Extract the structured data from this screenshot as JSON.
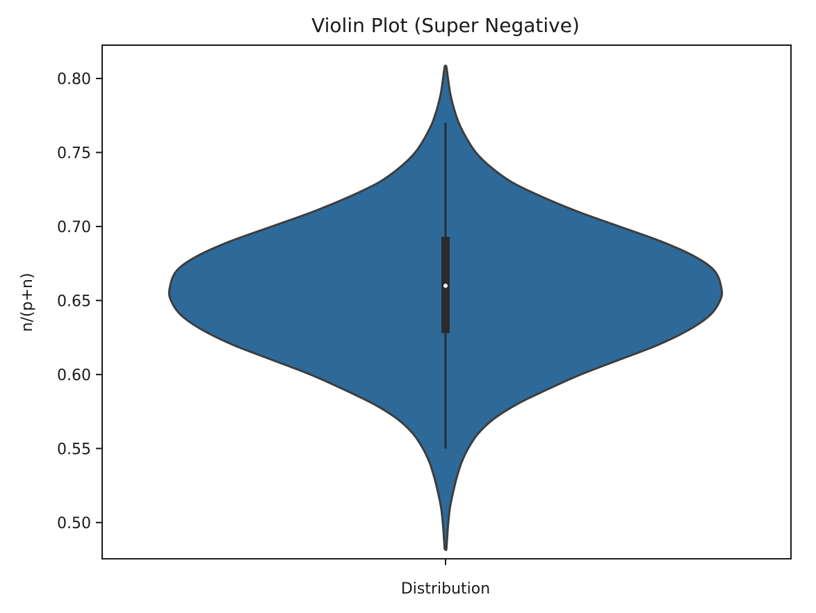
{
  "chart_data": {
    "type": "violin",
    "title": "Violin Plot (Super Negative)",
    "xlabel": "Distribution",
    "ylabel": "n/(p+n)",
    "categories": [
      "Distribution"
    ],
    "ylim": [
      0.4755,
      0.8225
    ],
    "yticks": [
      0.5,
      0.55,
      0.6,
      0.65,
      0.7,
      0.75,
      0.8
    ],
    "ytick_labels": [
      "0.50",
      "0.55",
      "0.60",
      "0.65",
      "0.70",
      "0.75",
      "0.80"
    ],
    "grid": false,
    "fill_color": "#2d6a9a",
    "edge_color": "#3d3d3d",
    "density_extent": [
      0.482,
      0.808
    ],
    "density_profile": [
      {
        "y": 0.482,
        "w": 0.003
      },
      {
        "y": 0.49,
        "w": 0.006
      },
      {
        "y": 0.5,
        "w": 0.01
      },
      {
        "y": 0.51,
        "w": 0.016
      },
      {
        "y": 0.52,
        "w": 0.027
      },
      {
        "y": 0.53,
        "w": 0.04
      },
      {
        "y": 0.54,
        "w": 0.057
      },
      {
        "y": 0.55,
        "w": 0.082
      },
      {
        "y": 0.56,
        "w": 0.118
      },
      {
        "y": 0.57,
        "w": 0.175
      },
      {
        "y": 0.58,
        "w": 0.26
      },
      {
        "y": 0.59,
        "w": 0.37
      },
      {
        "y": 0.6,
        "w": 0.49
      },
      {
        "y": 0.61,
        "w": 0.63
      },
      {
        "y": 0.62,
        "w": 0.77
      },
      {
        "y": 0.63,
        "w": 0.88
      },
      {
        "y": 0.64,
        "w": 0.958
      },
      {
        "y": 0.65,
        "w": 0.995
      },
      {
        "y": 0.658,
        "w": 1.0
      },
      {
        "y": 0.67,
        "w": 0.975
      },
      {
        "y": 0.68,
        "w": 0.9
      },
      {
        "y": 0.69,
        "w": 0.78
      },
      {
        "y": 0.7,
        "w": 0.63
      },
      {
        "y": 0.71,
        "w": 0.48
      },
      {
        "y": 0.72,
        "w": 0.35
      },
      {
        "y": 0.73,
        "w": 0.24
      },
      {
        "y": 0.74,
        "w": 0.165
      },
      {
        "y": 0.75,
        "w": 0.11
      },
      {
        "y": 0.76,
        "w": 0.075
      },
      {
        "y": 0.77,
        "w": 0.048
      },
      {
        "y": 0.78,
        "w": 0.03
      },
      {
        "y": 0.79,
        "w": 0.017
      },
      {
        "y": 0.8,
        "w": 0.009
      },
      {
        "y": 0.808,
        "w": 0.003
      }
    ],
    "whisker_range": [
      0.55,
      0.77
    ],
    "quartiles": [
      0.628,
      0.693
    ],
    "median": 0.66
  }
}
